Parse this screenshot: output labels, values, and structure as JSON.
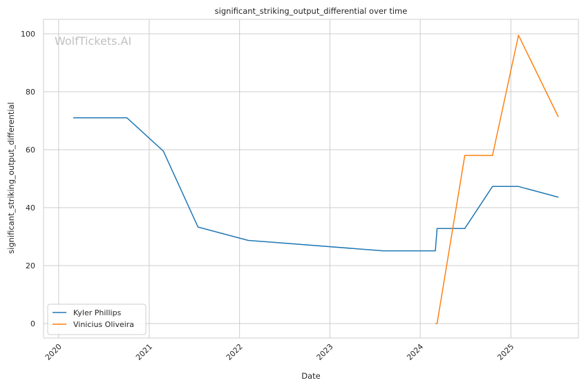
{
  "chart_data": {
    "type": "line",
    "title": "significant_striking_output_differential over time",
    "xlabel": "Date",
    "ylabel": "significant_striking_output_differential",
    "watermark": "WolfTickets.AI",
    "x_ticks": [
      "2020",
      "2021",
      "2022",
      "2023",
      "2024",
      "2025"
    ],
    "y_ticks": [
      0,
      20,
      40,
      60,
      80,
      100
    ],
    "xlim": [
      "2019-11-01",
      "2025-10-01"
    ],
    "ylim": [
      -5,
      105
    ],
    "grid": true,
    "legend_position": "lower-left",
    "series": [
      {
        "name": "Kyler Phillips",
        "color": "#1f77b4",
        "points": [
          {
            "x": "2020-02-29",
            "y": 71.0
          },
          {
            "x": "2020-10-03",
            "y": 71.0
          },
          {
            "x": "2021-02-27",
            "y": 59.5
          },
          {
            "x": "2021-07-17",
            "y": 33.3
          },
          {
            "x": "2022-02-05",
            "y": 28.7
          },
          {
            "x": "2023-08-05",
            "y": 25.1
          },
          {
            "x": "2024-03-02",
            "y": 25.1
          },
          {
            "x": "2024-03-09",
            "y": 32.8
          },
          {
            "x": "2024-06-29",
            "y": 32.8
          },
          {
            "x": "2024-10-19",
            "y": 47.3
          },
          {
            "x": "2025-02-01",
            "y": 47.3
          },
          {
            "x": "2025-07-12",
            "y": 43.6
          }
        ]
      },
      {
        "name": "Vinicius Oliveira",
        "color": "#ff7f0e",
        "points": [
          {
            "x": "2024-03-02",
            "y": 0.0
          },
          {
            "x": "2024-03-09",
            "y": 0.0
          },
          {
            "x": "2024-06-29",
            "y": 58.0
          },
          {
            "x": "2024-10-19",
            "y": 58.0
          },
          {
            "x": "2025-02-01",
            "y": 99.5
          },
          {
            "x": "2025-07-12",
            "y": 71.3
          }
        ]
      }
    ]
  }
}
